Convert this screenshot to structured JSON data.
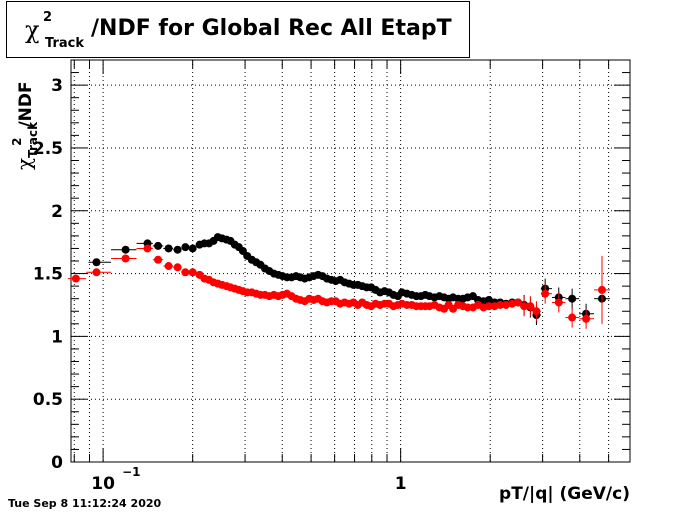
{
  "title": {
    "chi": "χ",
    "sup": "2",
    "sub": "Track",
    "text": "/NDF for Global Rec All EtapT"
  },
  "timestamp": "Tue Sep  8 11:12:24 2020",
  "chart_data": {
    "type": "scatter",
    "xlabel": "pT/|q| (GeV/c)",
    "ylabel": {
      "chi": "χ",
      "sup": "2",
      "sub": "Track",
      "rest": "/NDF"
    },
    "xscale": "log",
    "xlim": [
      0.078,
      5.9
    ],
    "ylim": [
      0,
      3.2
    ],
    "xticks": [
      {
        "v": 0.1,
        "label": "10",
        "exp": "−1"
      },
      {
        "v": 1,
        "label": "1",
        "exp": ""
      }
    ],
    "yticks": [
      0,
      0.5,
      1,
      1.5,
      2,
      2.5,
      3
    ],
    "ytick_labels": [
      "0",
      "0.5",
      "1",
      "1.5",
      "2",
      "2.5",
      "3"
    ],
    "grid": true,
    "series": [
      {
        "color": "#000000",
        "points": [
          [
            0.095,
            1.59
          ],
          [
            0.119,
            1.69
          ],
          [
            0.141,
            1.74
          ],
          [
            0.153,
            1.72
          ],
          [
            0.166,
            1.7
          ],
          [
            0.178,
            1.69
          ],
          [
            0.189,
            1.71
          ],
          [
            0.2,
            1.7
          ],
          [
            0.211,
            1.73
          ],
          [
            0.219,
            1.74
          ],
          [
            0.227,
            1.74
          ],
          [
            0.235,
            1.76
          ],
          [
            0.243,
            1.79
          ],
          [
            0.251,
            1.78
          ],
          [
            0.26,
            1.77
          ],
          [
            0.268,
            1.76
          ],
          [
            0.277,
            1.73
          ],
          [
            0.286,
            1.71
          ],
          [
            0.295,
            1.68
          ],
          [
            0.305,
            1.64
          ],
          [
            0.316,
            1.61
          ],
          [
            0.327,
            1.59
          ],
          [
            0.338,
            1.57
          ],
          [
            0.35,
            1.54
          ],
          [
            0.362,
            1.52
          ],
          [
            0.375,
            1.5
          ],
          [
            0.388,
            1.49
          ],
          [
            0.401,
            1.48
          ],
          [
            0.415,
            1.47
          ],
          [
            0.43,
            1.47
          ],
          [
            0.445,
            1.48
          ],
          [
            0.46,
            1.47
          ],
          [
            0.476,
            1.46
          ],
          [
            0.493,
            1.47
          ],
          [
            0.51,
            1.48
          ],
          [
            0.528,
            1.49
          ],
          [
            0.546,
            1.48
          ],
          [
            0.565,
            1.46
          ],
          [
            0.585,
            1.45
          ],
          [
            0.605,
            1.44
          ],
          [
            0.626,
            1.45
          ],
          [
            0.648,
            1.43
          ],
          [
            0.671,
            1.42
          ],
          [
            0.694,
            1.41
          ],
          [
            0.718,
            1.41
          ],
          [
            0.743,
            1.4
          ],
          [
            0.769,
            1.39
          ],
          [
            0.796,
            1.39
          ],
          [
            0.824,
            1.37
          ],
          [
            0.853,
            1.35
          ],
          [
            0.883,
            1.36
          ],
          [
            0.914,
            1.35
          ],
          [
            0.946,
            1.33
          ],
          [
            0.979,
            1.32
          ],
          [
            1.01,
            1.35
          ],
          [
            1.05,
            1.34
          ],
          [
            1.09,
            1.33
          ],
          [
            1.13,
            1.32
          ],
          [
            1.17,
            1.32
          ],
          [
            1.21,
            1.33
          ],
          [
            1.25,
            1.32
          ],
          [
            1.3,
            1.31
          ],
          [
            1.35,
            1.32
          ],
          [
            1.4,
            1.31
          ],
          [
            1.45,
            1.3
          ],
          [
            1.5,
            1.31
          ],
          [
            1.56,
            1.3
          ],
          [
            1.62,
            1.3
          ],
          [
            1.68,
            1.31
          ],
          [
            1.75,
            1.32
          ],
          [
            1.82,
            1.29
          ],
          [
            1.9,
            1.28
          ],
          [
            1.98,
            1.29
          ],
          [
            2.07,
            1.27
          ],
          [
            2.16,
            1.27
          ],
          [
            2.26,
            1.26
          ],
          [
            2.37,
            1.27
          ],
          [
            2.48,
            1.27
          ],
          [
            2.6,
            1.25
          ],
          [
            2.73,
            1.23
          ],
          [
            2.86,
            1.17
          ],
          [
            3.06,
            1.38
          ],
          [
            3.4,
            1.31
          ],
          [
            3.77,
            1.3
          ],
          [
            4.2,
            1.18
          ],
          [
            4.75,
            1.3
          ]
        ]
      },
      {
        "color": "#ff0000",
        "points": [
          [
            0.081,
            1.46
          ],
          [
            0.095,
            1.51
          ],
          [
            0.119,
            1.62
          ],
          [
            0.141,
            1.7
          ],
          [
            0.153,
            1.61
          ],
          [
            0.166,
            1.56
          ],
          [
            0.178,
            1.55
          ],
          [
            0.189,
            1.51
          ],
          [
            0.2,
            1.51
          ],
          [
            0.211,
            1.49
          ],
          [
            0.219,
            1.46
          ],
          [
            0.227,
            1.45
          ],
          [
            0.235,
            1.43
          ],
          [
            0.243,
            1.42
          ],
          [
            0.251,
            1.41
          ],
          [
            0.26,
            1.4
          ],
          [
            0.268,
            1.39
          ],
          [
            0.277,
            1.38
          ],
          [
            0.286,
            1.37
          ],
          [
            0.295,
            1.36
          ],
          [
            0.305,
            1.35
          ],
          [
            0.316,
            1.35
          ],
          [
            0.327,
            1.34
          ],
          [
            0.338,
            1.33
          ],
          [
            0.35,
            1.33
          ],
          [
            0.362,
            1.32
          ],
          [
            0.375,
            1.33
          ],
          [
            0.388,
            1.32
          ],
          [
            0.401,
            1.33
          ],
          [
            0.415,
            1.34
          ],
          [
            0.43,
            1.32
          ],
          [
            0.445,
            1.3
          ],
          [
            0.46,
            1.29
          ],
          [
            0.476,
            1.28
          ],
          [
            0.493,
            1.3
          ],
          [
            0.51,
            1.29
          ],
          [
            0.528,
            1.3
          ],
          [
            0.546,
            1.28
          ],
          [
            0.565,
            1.27
          ],
          [
            0.585,
            1.28
          ],
          [
            0.605,
            1.28
          ],
          [
            0.626,
            1.26
          ],
          [
            0.648,
            1.27
          ],
          [
            0.671,
            1.26
          ],
          [
            0.694,
            1.27
          ],
          [
            0.718,
            1.25
          ],
          [
            0.743,
            1.27
          ],
          [
            0.769,
            1.25
          ],
          [
            0.796,
            1.24
          ],
          [
            0.824,
            1.26
          ],
          [
            0.853,
            1.25
          ],
          [
            0.883,
            1.26
          ],
          [
            0.914,
            1.26
          ],
          [
            0.946,
            1.24
          ],
          [
            0.979,
            1.25
          ],
          [
            1.01,
            1.26
          ],
          [
            1.05,
            1.25
          ],
          [
            1.09,
            1.25
          ],
          [
            1.13,
            1.24
          ],
          [
            1.17,
            1.24
          ],
          [
            1.21,
            1.24
          ],
          [
            1.25,
            1.24
          ],
          [
            1.3,
            1.25
          ],
          [
            1.35,
            1.23
          ],
          [
            1.4,
            1.22
          ],
          [
            1.45,
            1.25
          ],
          [
            1.5,
            1.22
          ],
          [
            1.56,
            1.25
          ],
          [
            1.62,
            1.24
          ],
          [
            1.68,
            1.23
          ],
          [
            1.75,
            1.23
          ],
          [
            1.82,
            1.25
          ],
          [
            1.9,
            1.23
          ],
          [
            1.98,
            1.24
          ],
          [
            2.07,
            1.24
          ],
          [
            2.16,
            1.25
          ],
          [
            2.26,
            1.25
          ],
          [
            2.37,
            1.26
          ],
          [
            2.48,
            1.27
          ],
          [
            2.6,
            1.24
          ],
          [
            2.73,
            1.24
          ],
          [
            2.86,
            1.2
          ],
          [
            3.06,
            1.34
          ],
          [
            3.4,
            1.27
          ],
          [
            3.77,
            1.15
          ],
          [
            4.2,
            1.14
          ],
          [
            4.75,
            1.37
          ]
        ]
      }
    ]
  }
}
